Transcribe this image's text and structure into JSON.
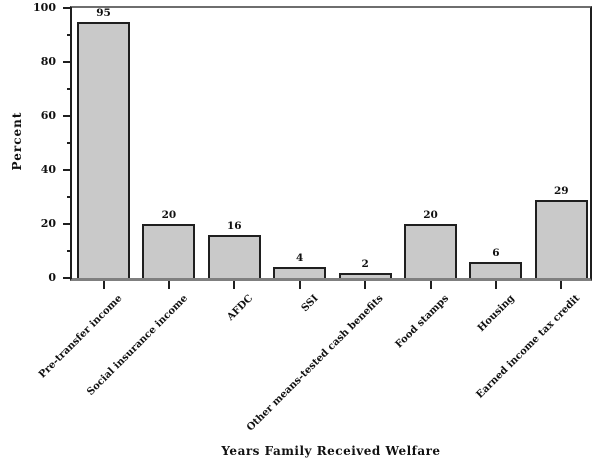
{
  "chart_data": {
    "type": "bar",
    "title": "",
    "xlabel": "Years Family Received Welfare",
    "ylabel": "Percent",
    "categories": [
      "Pre-transfer income",
      "Social insurance income",
      "AFDC",
      "SSI",
      "Other means-tested cash benefits",
      "Food stamps",
      "Housing",
      "Earned income tax credit"
    ],
    "values": [
      95,
      20,
      16,
      4,
      2,
      20,
      6,
      29
    ],
    "value_labels": [
      "95",
      "20",
      "16",
      "4",
      "2",
      "20",
      "6",
      "29"
    ],
    "ylim": [
      0,
      100
    ],
    "y_major_ticks": [
      0,
      20,
      40,
      60,
      80,
      100
    ],
    "y_minor_ticks": [
      10,
      30,
      50,
      70,
      90
    ],
    "grid": false,
    "legend_position": "none",
    "colors": {
      "bar_fill": "#c9c9c9",
      "bar_border": "#1f1f1f",
      "axis": "#1f1f1f",
      "baseline": "#7f7f7f",
      "frame_top": "#6e6e6e",
      "background": "#ffffff",
      "text": "#111111"
    }
  }
}
